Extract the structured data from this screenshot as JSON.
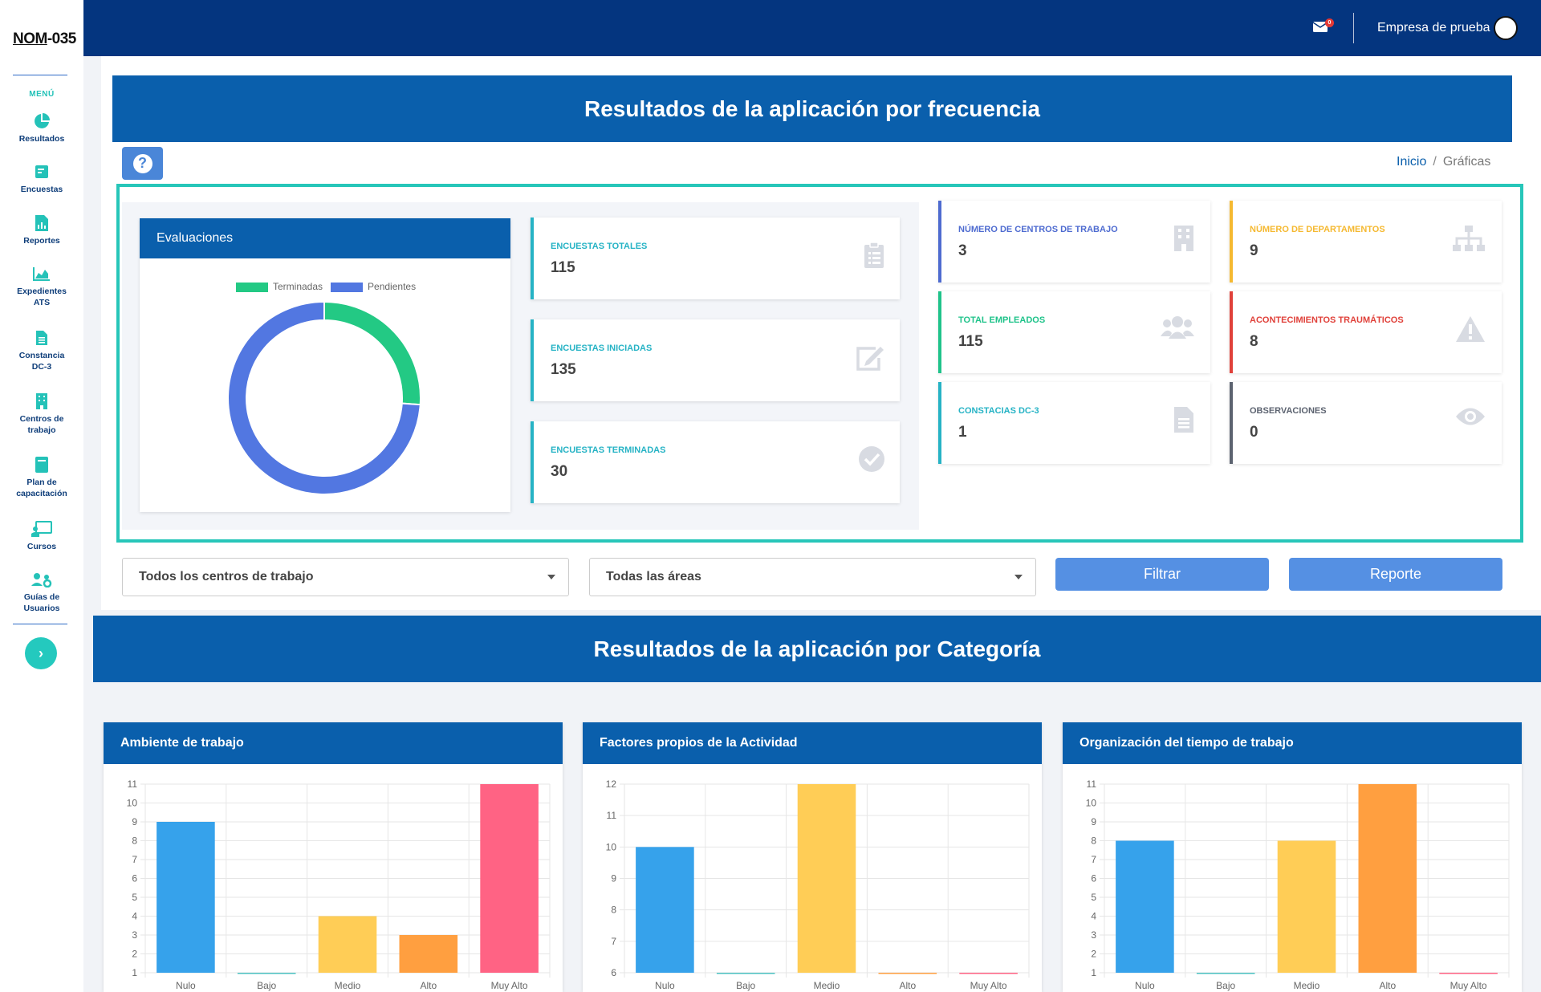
{
  "sidebar": {
    "logo_part1": "NOM",
    "logo_part2": "-035",
    "menu_title": "MENÚ",
    "items": [
      {
        "label": "Resultados"
      },
      {
        "label": "Encuestas"
      },
      {
        "label": "Reportes"
      },
      {
        "label": "Expedientes ATS"
      },
      {
        "label": "Constancia DC-3"
      },
      {
        "label": "Centros de trabajo"
      },
      {
        "label": "Plan de capacitación"
      },
      {
        "label": "Cursos"
      },
      {
        "label": "Guías de Usuarios"
      }
    ],
    "toggle_glyph": "›"
  },
  "topbar": {
    "mail_badge": "0",
    "company": "Empresa de prueba"
  },
  "header": {
    "title": "Resultados de la aplicación por frecuencia",
    "help_glyph": "?",
    "breadcrumb": {
      "home": "Inicio",
      "separator": "/",
      "current": "Gráficas"
    }
  },
  "evaluations": {
    "title": "Evaluaciones",
    "legend": [
      {
        "name": "Terminadas",
        "color": "#23c984"
      },
      {
        "name": "Pendientes",
        "color": "#5277e1"
      }
    ],
    "chart_data": {
      "type": "pie",
      "donut": true,
      "title": "",
      "series": [
        {
          "name": "Terminadas",
          "value": 30
        },
        {
          "name": "Pendientes",
          "value": 85
        }
      ]
    }
  },
  "stats": [
    {
      "title": "ENCUESTAS TOTALES",
      "value": "115",
      "icon": "clipboard-list-icon"
    },
    {
      "title": "ENCUESTAS INICIADAS",
      "value": "135",
      "icon": "edit-icon"
    },
    {
      "title": "ENCUESTAS TERMINADAS",
      "value": "30",
      "icon": "check-circle-icon"
    }
  ],
  "info": [
    {
      "title": "NÚMERO DE CENTROS DE TRABAJO",
      "value": "3",
      "color": "#4e6bd0",
      "icon": "building-icon"
    },
    {
      "title": "NÚMERO DE DEPARTAMENTOS",
      "value": "9",
      "color": "#f5b931",
      "icon": "sitemap-icon"
    },
    {
      "title": "TOTAL EMPLEADOS",
      "value": "115",
      "color": "#1fc38a",
      "icon": "users-icon"
    },
    {
      "title": "ACONTECIMIENTOS TRAUMÁTICOS",
      "value": "8",
      "color": "#e0413a",
      "icon": "warning-icon"
    },
    {
      "title": "CONSTACIAS DC-3",
      "value": "1",
      "color": "#26b3c5",
      "icon": "file-icon"
    },
    {
      "title": "OBSERVACIONES",
      "value": "0",
      "color": "#5c6370",
      "icon": "eye-icon"
    }
  ],
  "filters": {
    "centros": "Todos los centros de trabajo",
    "areas": "Todas las áreas",
    "filter_button": "Filtrar",
    "report_button": "Reporte"
  },
  "category_title": "Resultados de la aplicación por Categoría",
  "chart_data": [
    {
      "type": "bar",
      "title": "Ambiente de trabajo",
      "categories": [
        "Nulo",
        "Bajo",
        "Medio",
        "Alto",
        "Muy Alto"
      ],
      "values": [
        9,
        1,
        4,
        3,
        11
      ],
      "ylim": [
        1,
        11
      ],
      "yticks": [
        "1",
        "2",
        "3",
        "4",
        "5",
        "6",
        "7",
        "8",
        "9",
        "10",
        "11"
      ],
      "colors": [
        "#36a2eb",
        "#4bc0c0",
        "#ffcd56",
        "#ff9f40",
        "#ff6384"
      ],
      "grid": true
    },
    {
      "type": "bar",
      "title": "Factores propios de la Actividad",
      "categories": [
        "Nulo",
        "Bajo",
        "Medio",
        "Alto",
        "Muy Alto"
      ],
      "values": [
        10,
        6,
        12,
        6,
        6
      ],
      "ylim": [
        6,
        12
      ],
      "yticks": [
        "6",
        "7",
        "8",
        "9",
        "10",
        "11",
        "12"
      ],
      "colors": [
        "#36a2eb",
        "#4bc0c0",
        "#ffcd56",
        "#ff9f40",
        "#ff6384"
      ],
      "grid": true
    },
    {
      "type": "bar",
      "title": "Organización del tiempo de trabajo",
      "categories": [
        "Nulo",
        "Bajo",
        "Medio",
        "Alto",
        "Muy Alto"
      ],
      "values": [
        8,
        1,
        8,
        11,
        1
      ],
      "ylim": [
        1,
        11
      ],
      "yticks": [
        "1",
        "2",
        "3",
        "4",
        "5",
        "6",
        "7",
        "8",
        "9",
        "10",
        "11"
      ],
      "colors": [
        "#36a2eb",
        "#4bc0c0",
        "#ffcd56",
        "#ff9f40",
        "#ff6384"
      ],
      "grid": true
    }
  ]
}
